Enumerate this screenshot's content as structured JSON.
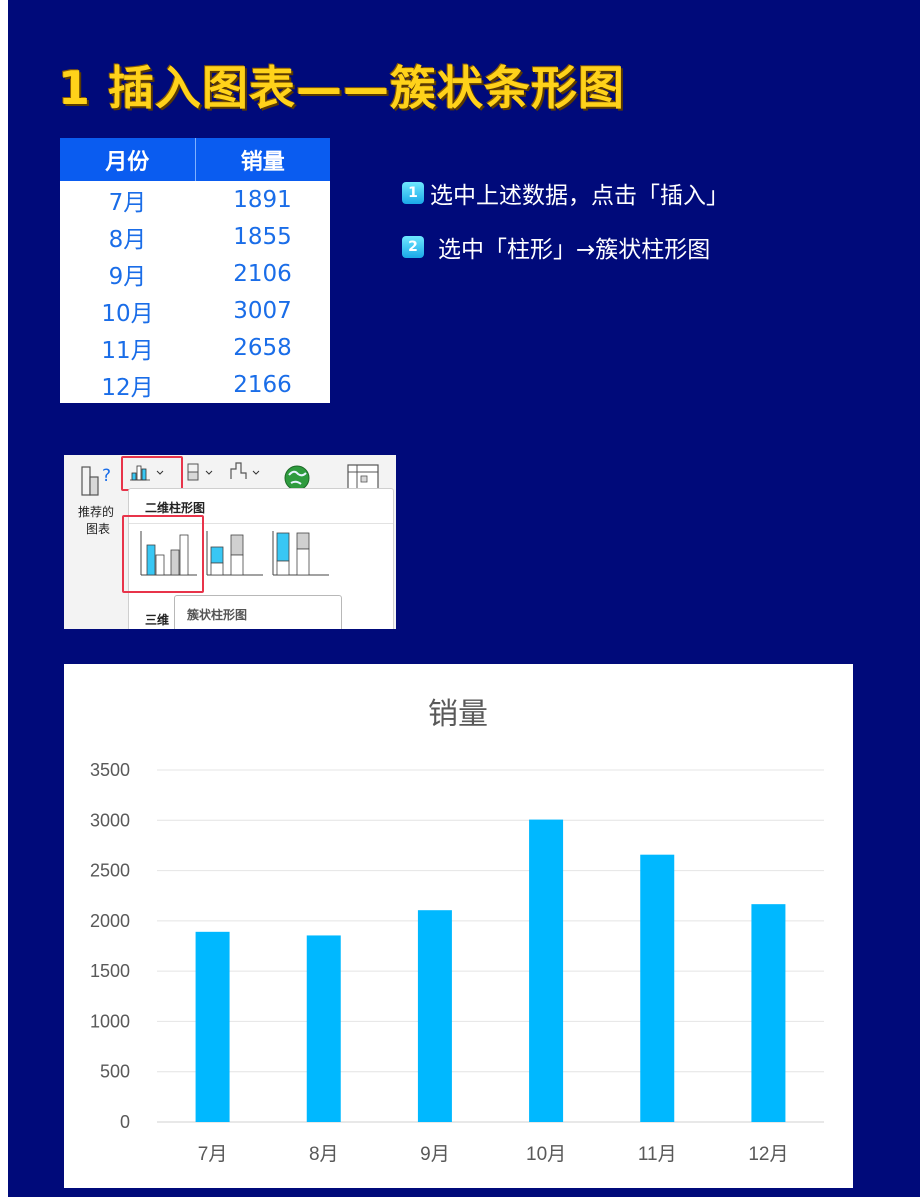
{
  "title": "1 插入图表——簇状条形图",
  "table": {
    "headers": [
      "月份",
      "销量"
    ],
    "rows": [
      [
        "7月",
        "1891"
      ],
      [
        "8月",
        "1855"
      ],
      [
        "9月",
        "2106"
      ],
      [
        "10月",
        "3007"
      ],
      [
        "11月",
        "2658"
      ],
      [
        "12月",
        "2166"
      ]
    ]
  },
  "steps": [
    {
      "num": "1",
      "text": "选中上述数据，点击「插入」"
    },
    {
      "num": "2",
      "text": "选中「柱形」→簇状柱形图"
    }
  ],
  "ribbon": {
    "recommended_label_line1": "推荐的",
    "recommended_label_line2": "图表",
    "section_2d": "二维柱形图",
    "section_3d": "三维",
    "tooltip": "簇状柱形图"
  },
  "colors": {
    "background": "#000a7a",
    "title": "#ffd21a",
    "table_header": "#0a5cf0",
    "table_text": "#1a6de8",
    "bar": "#00b8ff",
    "highlight": "#e8344a"
  },
  "chart_data": {
    "type": "bar",
    "title": "销量",
    "categories": [
      "7月",
      "8月",
      "9月",
      "10月",
      "11月",
      "12月"
    ],
    "values": [
      1891,
      1855,
      2106,
      3007,
      2658,
      2166
    ],
    "ylim": [
      0,
      3500
    ],
    "yticks": [
      0,
      500,
      1000,
      1500,
      2000,
      2500,
      3000,
      3500
    ],
    "xlabel": "",
    "ylabel": "",
    "grid": true
  }
}
